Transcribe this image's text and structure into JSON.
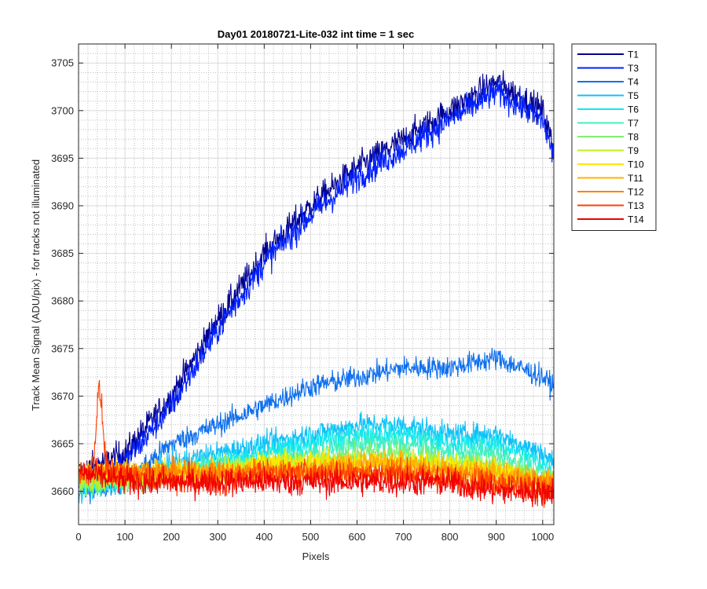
{
  "chart_data": {
    "type": "line",
    "title": "Day01 20180721-Lite-032 int time = 1 sec",
    "xlabel": "Pixels",
    "ylabel": "Track Mean Signal (ADU/pix) - for tracks not illuminated",
    "xlim": [
      0,
      1024
    ],
    "ylim": [
      3656.5,
      3707
    ],
    "xticks": [
      0,
      100,
      200,
      300,
      400,
      500,
      600,
      700,
      800,
      900,
      1000
    ],
    "yticks": [
      3660,
      3665,
      3670,
      3675,
      3680,
      3685,
      3690,
      3695,
      3700,
      3705
    ],
    "grid": "major and minor",
    "legend_position": "outside-top-right",
    "series": [
      {
        "name": "T1",
        "color": "#00008f",
        "noise": 1.4,
        "trend": [
          [
            0,
            3662
          ],
          [
            100,
            3664
          ],
          [
            200,
            3670
          ],
          [
            300,
            3678
          ],
          [
            400,
            3685
          ],
          [
            500,
            3690
          ],
          [
            600,
            3694
          ],
          [
            700,
            3697
          ],
          [
            800,
            3700
          ],
          [
            900,
            3703
          ],
          [
            1000,
            3700
          ],
          [
            1024,
            3696
          ]
        ]
      },
      {
        "name": "T3",
        "color": "#0020ff",
        "noise": 1.4,
        "trend": [
          [
            0,
            3661
          ],
          [
            100,
            3663
          ],
          [
            200,
            3669
          ],
          [
            300,
            3677
          ],
          [
            400,
            3684
          ],
          [
            500,
            3689
          ],
          [
            600,
            3693
          ],
          [
            700,
            3696
          ],
          [
            800,
            3699
          ],
          [
            900,
            3702
          ],
          [
            1000,
            3699
          ],
          [
            1024,
            3695
          ]
        ]
      },
      {
        "name": "T4",
        "color": "#1070ee",
        "noise": 1.1,
        "trend": [
          [
            0,
            3660
          ],
          [
            100,
            3661
          ],
          [
            200,
            3665
          ],
          [
            300,
            3667
          ],
          [
            400,
            3669
          ],
          [
            500,
            3671
          ],
          [
            600,
            3672
          ],
          [
            700,
            3673
          ],
          [
            800,
            3673
          ],
          [
            900,
            3674
          ],
          [
            1000,
            3672
          ],
          [
            1024,
            3671
          ]
        ]
      },
      {
        "name": "T5",
        "color": "#10c0f8",
        "noise": 1.1,
        "trend": [
          [
            0,
            3660
          ],
          [
            100,
            3661
          ],
          [
            200,
            3663
          ],
          [
            300,
            3664
          ],
          [
            400,
            3665
          ],
          [
            500,
            3666
          ],
          [
            600,
            3667
          ],
          [
            700,
            3667
          ],
          [
            800,
            3666
          ],
          [
            900,
            3666
          ],
          [
            1000,
            3664
          ],
          [
            1024,
            3663
          ]
        ]
      },
      {
        "name": "T6",
        "color": "#10e8f0",
        "noise": 1.1,
        "trend": [
          [
            0,
            3661
          ],
          [
            100,
            3661
          ],
          [
            200,
            3662
          ],
          [
            300,
            3663
          ],
          [
            400,
            3664
          ],
          [
            500,
            3665
          ],
          [
            600,
            3666
          ],
          [
            700,
            3666
          ],
          [
            800,
            3665
          ],
          [
            900,
            3665
          ],
          [
            1000,
            3663
          ],
          [
            1024,
            3662
          ]
        ]
      },
      {
        "name": "T7",
        "color": "#40f0c0",
        "noise": 1.1,
        "trend": [
          [
            0,
            3661
          ],
          [
            100,
            3661
          ],
          [
            200,
            3662
          ],
          [
            300,
            3663
          ],
          [
            400,
            3663
          ],
          [
            500,
            3664
          ],
          [
            600,
            3665
          ],
          [
            700,
            3665
          ],
          [
            800,
            3664
          ],
          [
            900,
            3664
          ],
          [
            1000,
            3662
          ],
          [
            1024,
            3661
          ]
        ]
      },
      {
        "name": "T8",
        "color": "#80f070",
        "noise": 1.1,
        "trend": [
          [
            0,
            3661
          ],
          [
            100,
            3661
          ],
          [
            200,
            3662
          ],
          [
            300,
            3662
          ],
          [
            400,
            3663
          ],
          [
            500,
            3663
          ],
          [
            600,
            3664
          ],
          [
            700,
            3664
          ],
          [
            800,
            3663
          ],
          [
            900,
            3663
          ],
          [
            1000,
            3661
          ],
          [
            1024,
            3661
          ]
        ]
      },
      {
        "name": "T9",
        "color": "#c0f020",
        "noise": 1.1,
        "trend": [
          [
            0,
            3661
          ],
          [
            100,
            3661
          ],
          [
            200,
            3662
          ],
          [
            300,
            3662
          ],
          [
            400,
            3663
          ],
          [
            500,
            3663
          ],
          [
            600,
            3663
          ],
          [
            700,
            3663
          ],
          [
            800,
            3663
          ],
          [
            900,
            3662
          ],
          [
            1000,
            3661
          ],
          [
            1024,
            3661
          ]
        ]
      },
      {
        "name": "T10",
        "color": "#ffe800",
        "noise": 1.2,
        "trend": [
          [
            0,
            3662
          ],
          [
            100,
            3662
          ],
          [
            200,
            3662
          ],
          [
            300,
            3662
          ],
          [
            400,
            3663
          ],
          [
            500,
            3663
          ],
          [
            600,
            3663
          ],
          [
            700,
            3663
          ],
          [
            800,
            3663
          ],
          [
            900,
            3662
          ],
          [
            1000,
            3661
          ],
          [
            1024,
            3661
          ]
        ]
      },
      {
        "name": "T11",
        "color": "#ffb000",
        "noise": 1.2,
        "trend": [
          [
            0,
            3662
          ],
          [
            100,
            3662
          ],
          [
            200,
            3662
          ],
          [
            300,
            3662
          ],
          [
            400,
            3662
          ],
          [
            500,
            3662
          ],
          [
            600,
            3663
          ],
          [
            700,
            3663
          ],
          [
            800,
            3662
          ],
          [
            900,
            3662
          ],
          [
            1000,
            3661
          ],
          [
            1024,
            3661
          ]
        ]
      },
      {
        "name": "T12",
        "color": "#ff8000",
        "noise": 1.2,
        "trend": [
          [
            0,
            3662
          ],
          [
            100,
            3662
          ],
          [
            200,
            3662
          ],
          [
            300,
            3662
          ],
          [
            400,
            3662
          ],
          [
            500,
            3662
          ],
          [
            600,
            3662
          ],
          [
            700,
            3662
          ],
          [
            800,
            3662
          ],
          [
            900,
            3661
          ],
          [
            1000,
            3661
          ],
          [
            1024,
            3661
          ]
        ]
      },
      {
        "name": "T13",
        "color": "#ff4000",
        "noise": 1.3,
        "bump": {
          "center": 45,
          "width": 10,
          "height": 8.5
        },
        "trend": [
          [
            0,
            3662
          ],
          [
            100,
            3662
          ],
          [
            200,
            3661
          ],
          [
            300,
            3661
          ],
          [
            400,
            3662
          ],
          [
            500,
            3662
          ],
          [
            600,
            3662
          ],
          [
            700,
            3662
          ],
          [
            800,
            3661
          ],
          [
            900,
            3661
          ],
          [
            1000,
            3660
          ],
          [
            1024,
            3660
          ]
        ]
      },
      {
        "name": "T14",
        "color": "#f00000",
        "noise": 1.4,
        "trend": [
          [
            0,
            3662
          ],
          [
            100,
            3661
          ],
          [
            200,
            3661
          ],
          [
            300,
            3661
          ],
          [
            400,
            3661
          ],
          [
            500,
            3661
          ],
          [
            600,
            3661
          ],
          [
            700,
            3661
          ],
          [
            800,
            3661
          ],
          [
            900,
            3660
          ],
          [
            1000,
            3660
          ],
          [
            1024,
            3660
          ]
        ]
      }
    ]
  }
}
